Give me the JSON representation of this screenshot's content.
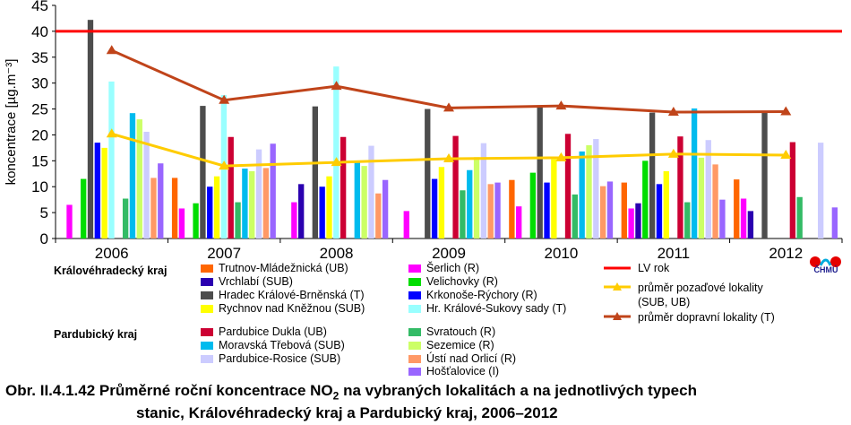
{
  "chart_data": {
    "type": "bar",
    "categories": [
      "2006",
      "2007",
      "2008",
      "2009",
      "2010",
      "2011",
      "2012"
    ],
    "ylabel": "koncentrace [µg.m⁻³]",
    "ylim": [
      0,
      45
    ],
    "yticks": [
      0,
      5,
      10,
      15,
      20,
      25,
      30,
      35,
      40,
      45
    ],
    "limit": {
      "name": "LV rok",
      "value": 40,
      "color": "#ff0000"
    },
    "series": [
      {
        "name": "Trutnov-Mládežnická (UB)",
        "color": "#ff6600",
        "values": [
          null,
          11.7,
          null,
          null,
          11.3,
          10.8,
          11.4
        ]
      },
      {
        "name": "Šerlich (R)",
        "color": "#ff00ff",
        "values": [
          6.5,
          5.8,
          7.0,
          5.3,
          6.2,
          5.8,
          7.7
        ]
      },
      {
        "name": "Vrchlabí (SUB)",
        "color": "#2a00b0",
        "values": [
          null,
          null,
          10.5,
          null,
          null,
          6.8,
          5.3
        ]
      },
      {
        "name": "Velichovky (R)",
        "color": "#00dd00",
        "values": [
          11.5,
          6.8,
          null,
          null,
          12.7,
          15.0,
          null
        ]
      },
      {
        "name": "Hradec Králové-Brněnská (T)",
        "color": "#4d4d4d",
        "values": [
          42.2,
          25.6,
          25.5,
          25.0,
          25.6,
          24.3,
          24.3
        ]
      },
      {
        "name": "Krkonoše-Rýchory (R)",
        "color": "#0000ff",
        "values": [
          18.5,
          10.0,
          10.0,
          11.5,
          10.8,
          10.5,
          null
        ]
      },
      {
        "name": "Rychnov nad Kněžnou (SUB)",
        "color": "#ffff00",
        "values": [
          17.5,
          12.0,
          12.0,
          13.8,
          15.3,
          13.0,
          null
        ]
      },
      {
        "name": "Hr. Králové-Sukovy sady (T)",
        "color": "#99ffff",
        "values": [
          30.3,
          27.7,
          33.2,
          null,
          null,
          null,
          null
        ]
      },
      {
        "name": "Pardubice Dukla (UB)",
        "color": "#cc0033",
        "values": [
          null,
          19.6,
          19.6,
          19.8,
          20.2,
          19.7,
          18.6
        ]
      },
      {
        "name": "Svratouch (R)",
        "color": "#33bb66",
        "values": [
          7.7,
          7.0,
          null,
          9.3,
          8.5,
          7.0,
          8.0
        ]
      },
      {
        "name": "Moravská Třebová (SUB)",
        "color": "#00bbee",
        "values": [
          24.2,
          13.5,
          15.0,
          13.2,
          16.8,
          25.1,
          null
        ]
      },
      {
        "name": "Sezemice (R)",
        "color": "#ccff66",
        "values": [
          23.0,
          13.0,
          14.0,
          15.7,
          18.0,
          15.6,
          null
        ]
      },
      {
        "name": "Pardubice-Rosice (SUB)",
        "color": "#ccccff",
        "values": [
          20.6,
          17.2,
          17.9,
          18.4,
          19.2,
          19.0,
          18.5
        ]
      },
      {
        "name": "Ústí nad Orlicí (R)",
        "color": "#ff9966",
        "values": [
          11.7,
          13.6,
          8.7,
          10.5,
          10.1,
          14.3,
          null
        ]
      },
      {
        "name": "Hošťalovice (I)",
        "color": "#9966ff",
        "values": [
          14.5,
          18.3,
          11.3,
          10.8,
          11.0,
          7.5,
          6.0
        ]
      }
    ],
    "lines": [
      {
        "name": "průměr pozaďové lokality (SUB, UB)",
        "color": "#ffcc00",
        "values": [
          20.2,
          14.0,
          14.7,
          15.4,
          15.6,
          16.3,
          16.1
        ]
      },
      {
        "name": "průměr dopravní lokality (T)",
        "color": "#c0441a",
        "values": [
          36.3,
          26.7,
          29.4,
          25.2,
          25.6,
          24.4,
          24.5
        ]
      }
    ]
  },
  "legend": {
    "group1": "Královéhradecký kraj",
    "group2": "Pardubický kraj",
    "items": [
      {
        "label": "Trutnov-Mládežnická (UB)",
        "color": "#ff6600"
      },
      {
        "label": "Vrchlabí (SUB)",
        "color": "#2a00b0"
      },
      {
        "label": "Hradec Králové-Brněnská (T)",
        "color": "#4d4d4d"
      },
      {
        "label": "Rychnov nad Kněžnou (SUB)",
        "color": "#ffff00"
      },
      {
        "label": "Šerlich (R)",
        "color": "#ff00ff"
      },
      {
        "label": "Velichovky (R)",
        "color": "#00dd00"
      },
      {
        "label": "Krkonoše-Rýchory (R)",
        "color": "#0000ff"
      },
      {
        "label": "Hr. Králové-Sukovy sady (T)",
        "color": "#99ffff"
      },
      {
        "label": "Pardubice Dukla (UB)",
        "color": "#cc0033"
      },
      {
        "label": "Moravská Třebová (SUB)",
        "color": "#00bbee"
      },
      {
        "label": "Pardubice-Rosice (SUB)",
        "color": "#ccccff"
      },
      {
        "label": "Svratouch (R)",
        "color": "#33bb66"
      },
      {
        "label": "Sezemice (R)",
        "color": "#ccff66"
      },
      {
        "label": "Ústí nad Orlicí (R)",
        "color": "#ff9966"
      },
      {
        "label": "Hošťalovice (I)",
        "color": "#9966ff"
      }
    ],
    "lv_label": "LV rok",
    "bg_label_1": "průměr pozaďové lokality",
    "bg_label_2": "(SUB, UB)",
    "traffic_label": "průměr dopravní lokality (T)"
  },
  "logo_text": "ČHMÚ",
  "caption": {
    "line1_prefix": "Obr. II.4.1.42  Průměrné roční koncentrace NO",
    "line1_sub": "2",
    "line1_suffix": " na vybraných lokalitách a na jednotlivých typech",
    "line2": "stanic, Královéhradecký kraj a Pardubický kraj, 2006–2012"
  }
}
